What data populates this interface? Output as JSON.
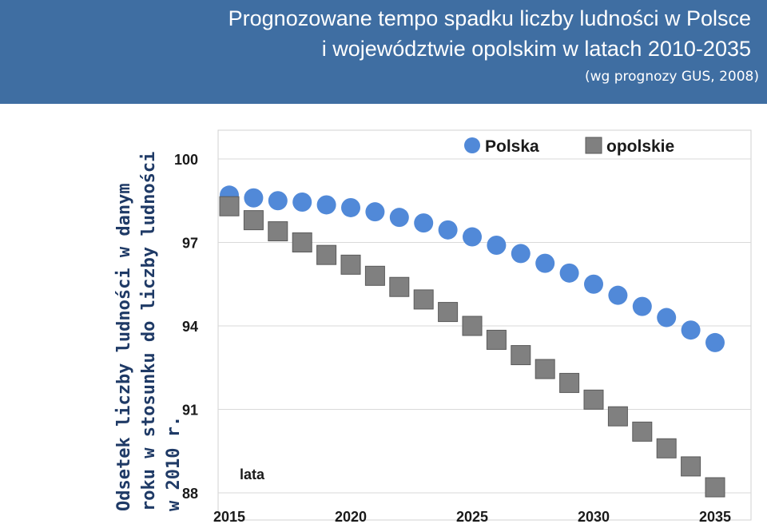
{
  "header": {
    "title_line1": "Prognozowane tempo spadku liczby ludności w Polsce",
    "title_line2": "i województwie opolskim w latach 2010-2035",
    "subtitle": "(wg prognozy GUS, 2008)"
  },
  "colors": {
    "header_bg": "#3f6ea2",
    "polska": "#5189d8",
    "opolskie": "#808080"
  },
  "chart_data": {
    "type": "scatter",
    "xlabel": "lata",
    "ylabel": "Odsetek liczby ludności w danym roku w stosunku do liczby ludności w 2010 r.",
    "xlim": [
      2015,
      2035
    ],
    "ylim": [
      88,
      100
    ],
    "xticks": [
      "2015",
      "2020",
      "2025",
      "2030",
      "2035"
    ],
    "yticks": [
      "100",
      "97",
      "94",
      "91",
      "88"
    ],
    "grid": "horizontal",
    "legend": "top-right",
    "series": [
      {
        "name": "Polska",
        "marker": "circle",
        "x": [
          2015,
          2016,
          2017,
          2018,
          2019,
          2020,
          2021,
          2022,
          2023,
          2024,
          2025,
          2026,
          2027,
          2028,
          2029,
          2030,
          2031,
          2032,
          2033,
          2034,
          2035
        ],
        "values": [
          98.7,
          98.6,
          98.5,
          98.45,
          98.35,
          98.25,
          98.1,
          97.9,
          97.7,
          97.45,
          97.2,
          96.9,
          96.6,
          96.25,
          95.9,
          95.5,
          95.1,
          94.7,
          94.3,
          93.85,
          93.4
        ]
      },
      {
        "name": "opolskie",
        "marker": "square",
        "x": [
          2015,
          2016,
          2017,
          2018,
          2019,
          2020,
          2021,
          2022,
          2023,
          2024,
          2025,
          2026,
          2027,
          2028,
          2029,
          2030,
          2031,
          2032,
          2033,
          2034,
          2035
        ],
        "values": [
          98.3,
          97.8,
          97.4,
          97.0,
          96.55,
          96.2,
          95.8,
          95.4,
          94.95,
          94.5,
          94.0,
          93.5,
          92.95,
          92.45,
          91.95,
          91.35,
          90.75,
          90.2,
          89.6,
          88.95,
          88.2
        ]
      }
    ]
  }
}
